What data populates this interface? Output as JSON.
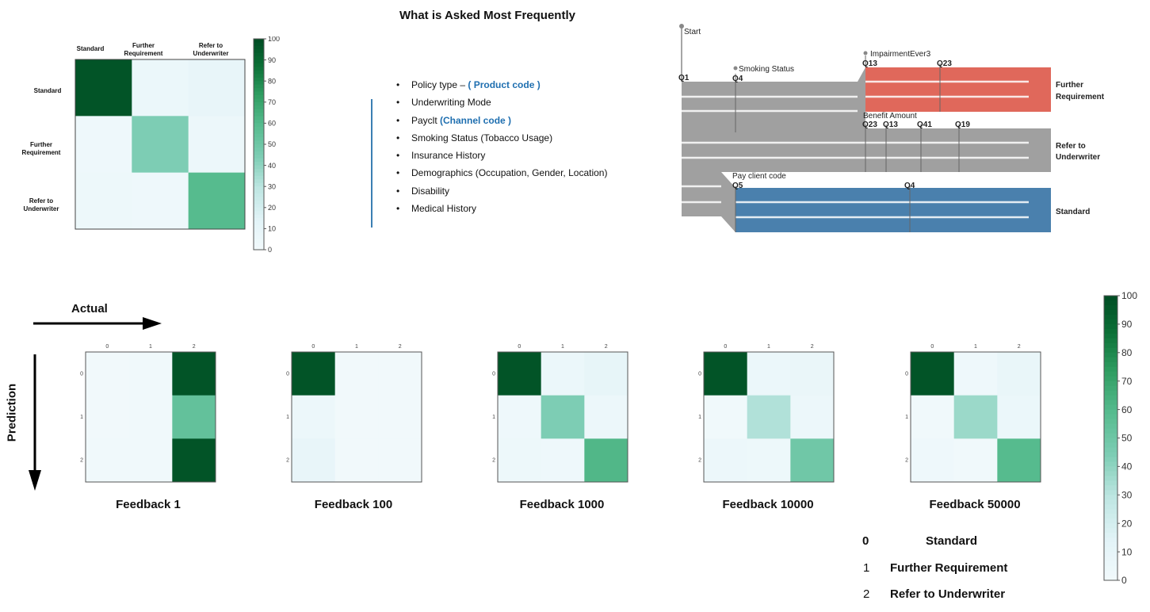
{
  "title": "What is Asked Most Frequently",
  "top_matrix": {
    "col_labels": [
      [
        "Standard"
      ],
      [
        "Further",
        "Requirement"
      ],
      [
        "Refer to",
        "Underwriter"
      ]
    ],
    "row_labels": [
      [
        "Standard"
      ],
      [
        "Further",
        "Requirement"
      ],
      [
        "Refer to",
        "Underwriter"
      ]
    ],
    "colorbar_ticks": [
      "100",
      "90",
      "80",
      "70",
      "60",
      "50",
      "40",
      "30",
      "20",
      "10",
      "0"
    ]
  },
  "bullets": [
    {
      "text": "Policy type – ",
      "highlight": "( Product code )"
    },
    {
      "text": "Underwriting Mode",
      "highlight": ""
    },
    {
      "text": "Payclt ",
      "highlight": "(Channel code )"
    },
    {
      "text": "Smoking Status (Tobacco Usage)",
      "highlight": ""
    },
    {
      "text": "Insurance History",
      "highlight": ""
    },
    {
      "text": "Demographics (Occupation, Gender, Location)",
      "highlight": ""
    },
    {
      "text": "Disability",
      "highlight": ""
    },
    {
      "text": "Medical History",
      "highlight": ""
    }
  ],
  "flow": {
    "start": "Start",
    "q1": "Q1",
    "smoking_status": "Smoking Status",
    "q4": "Q4",
    "impairment": "ImpairmentEver3",
    "q13": "Q13",
    "q23": "Q23",
    "benefit_amount": "Benefit Amount",
    "q23b": "Q23",
    "q13b": "Q13",
    "q41": "Q41",
    "q19": "Q19",
    "pay_client_code": "Pay client code",
    "q5": "Q5",
    "q4b": "Q4",
    "out_further": [
      "Further",
      "Requirement"
    ],
    "out_refer": [
      "Refer to",
      "Underwriter"
    ],
    "out_standard": "Standard",
    "colors": {
      "further": "#e0685b",
      "refer": "#a0a0a0",
      "standard": "#4a80ad"
    }
  },
  "axes": {
    "actual": "Actual",
    "prediction": "Prediction"
  },
  "chart_data": [
    {
      "type": "heatmap",
      "title": "",
      "x": [
        "Standard",
        "Further Requirement",
        "Refer to Underwriter"
      ],
      "y": [
        "Standard",
        "Further Requirement",
        "Refer to Underwriter"
      ],
      "values": [
        [
          98,
          7,
          10
        ],
        [
          4,
          45,
          6
        ],
        [
          5,
          4,
          60
        ]
      ],
      "colorbar": [
        0,
        100
      ]
    },
    {
      "type": "heatmap",
      "title": "Feedback 1",
      "x": [
        "0",
        "1",
        "2"
      ],
      "y": [
        "0",
        "1",
        "2"
      ],
      "values": [
        [
          2,
          3,
          98
        ],
        [
          2,
          3,
          55
        ],
        [
          3,
          3,
          98
        ]
      ]
    },
    {
      "type": "heatmap",
      "title": "Feedback 100",
      "x": [
        "0",
        "1",
        "2"
      ],
      "y": [
        "0",
        "1",
        "2"
      ],
      "values": [
        [
          98,
          2,
          2
        ],
        [
          6,
          2,
          2
        ],
        [
          10,
          2,
          2
        ]
      ]
    },
    {
      "type": "heatmap",
      "title": "Feedback 1000",
      "x": [
        "0",
        "1",
        "2"
      ],
      "y": [
        "0",
        "1",
        "2"
      ],
      "values": [
        [
          98,
          7,
          11
        ],
        [
          4,
          45,
          6
        ],
        [
          5,
          4,
          62
        ]
      ]
    },
    {
      "type": "heatmap",
      "title": "Feedback 10000",
      "x": [
        "0",
        "1",
        "2"
      ],
      "y": [
        "0",
        "1",
        "2"
      ],
      "values": [
        [
          98,
          7,
          8
        ],
        [
          3,
          33,
          6
        ],
        [
          6,
          5,
          50
        ]
      ]
    },
    {
      "type": "heatmap",
      "title": "Feedback 50000",
      "x": [
        "0",
        "1",
        "2"
      ],
      "y": [
        "0",
        "1",
        "2"
      ],
      "values": [
        [
          98,
          4,
          9
        ],
        [
          3,
          38,
          7
        ],
        [
          4,
          3,
          60
        ]
      ]
    }
  ],
  "big_colorbar_ticks": [
    "100",
    "90",
    "80",
    "70",
    "60",
    "50",
    "40",
    "30",
    "20",
    "10",
    "0"
  ],
  "legend": [
    {
      "code": "0",
      "label": "Standard"
    },
    {
      "code": "1",
      "label": "Further Requirement"
    },
    {
      "code": "2",
      "label": "Refer to Underwriter"
    }
  ]
}
